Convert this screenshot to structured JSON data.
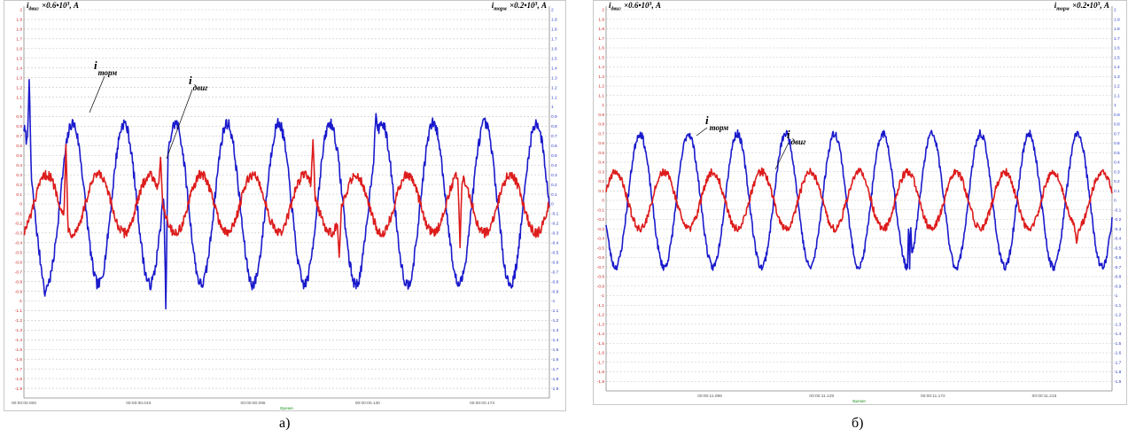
{
  "chart_data": [
    {
      "type": "line",
      "panel_caption": "а)",
      "left_axis_label": {
        "main": "i",
        "sub": "двиг",
        "scale": "×0.6•10",
        "exp": "3",
        "unit": ", A"
      },
      "right_axis_label": {
        "main": "i",
        "sub": "торм",
        "scale": "×0.2•10",
        "exp": "3",
        "unit": ", A"
      },
      "y_ticks": [
        "2",
        "1.9",
        "1.8",
        "1.7",
        "1.6",
        "1.5",
        "1.4",
        "1.3",
        "1.2",
        "1.1",
        "1",
        "0.9",
        "0.8",
        "0.7",
        "0.6",
        "0.5",
        "0.4",
        "0.3",
        "0.2",
        "0.1",
        "0",
        "-0.1",
        "-0.2",
        "-0.3",
        "-0.4",
        "-0.5",
        "-0.6",
        "-0.7",
        "-0.8",
        "-0.9",
        "-1",
        "-1.1",
        "-1.2",
        "-1.3",
        "-1.4",
        "-1.5",
        "-1.6",
        "-1.7",
        "-1.8",
        "-1.9"
      ],
      "ylim": [
        -2,
        2
      ],
      "x_ticks": [
        "00:00:00.000",
        "00:00:00.043",
        "00:00:00.086",
        "00:00:00.130",
        "00:00:00.173"
      ],
      "xlabel": "Время",
      "grid": true,
      "series": [
        {
          "name": "торм",
          "color": "#1a1acc",
          "amplitude": 0.83,
          "cycles": 10.2,
          "phase_deg": 110,
          "noise": 0.06,
          "spikes": [
            [
              0.01,
              1.28
            ],
            [
              0.04,
              -0.95
            ],
            [
              0.27,
              -1.08
            ],
            [
              0.67,
              0.93
            ]
          ]
        },
        {
          "name": "двиг",
          "color": "#dd1c1c",
          "amplitude": 0.3,
          "cycles": 10.2,
          "phase_deg": -70,
          "noise": 0.05,
          "spikes": [
            [
              0.08,
              0.61
            ],
            [
              0.26,
              0.48
            ],
            [
              0.55,
              0.66
            ],
            [
              0.6,
              -0.55
            ],
            [
              0.83,
              -0.45
            ]
          ]
        }
      ],
      "annotations": [
        {
          "main": "i",
          "sub": "торм"
        },
        {
          "main": "i",
          "sub": "двиг"
        }
      ]
    },
    {
      "type": "line",
      "panel_caption": "б)",
      "left_axis_label": {
        "main": "i",
        "sub": "двиг",
        "scale": "×0.6•10",
        "exp": "3",
        "unit": ", A"
      },
      "right_axis_label": {
        "main": "i",
        "sub": "торм",
        "scale": "×0.2•10",
        "exp": "3",
        "unit": ", A"
      },
      "y_ticks": [
        "2",
        "1.9",
        "1.8",
        "1.7",
        "1.6",
        "1.5",
        "1.4",
        "1.3",
        "1.2",
        "1.1",
        "1",
        "0.9",
        "0.8",
        "0.7",
        "0.6",
        "0.5",
        "0.4",
        "0.3",
        "0.2",
        "0.1",
        "0",
        "-0.1",
        "-0.2",
        "-0.3",
        "-0.4",
        "-0.5",
        "-0.6",
        "-0.7",
        "-0.8",
        "-0.9",
        "-1",
        "-1.1",
        "-1.2",
        "-1.3",
        "-1.4",
        "-1.5",
        "-1.6",
        "-1.7",
        "-1.8",
        "-1.9"
      ],
      "ylim": [
        -2,
        2
      ],
      "x_ticks": [
        "00:00:11.086",
        "00:00:11.129",
        "00:00:11.172",
        "00:00:11.215"
      ],
      "xlabel": "Время",
      "grid": true,
      "series": [
        {
          "name": "торм",
          "color": "#1a1acc",
          "amplitude": 0.7,
          "cycles": 10.4,
          "phase_deg": 200,
          "noise": 0.04,
          "spikes": [
            [
              0.6,
              0.9
            ],
            [
              0.6,
              -0.72
            ]
          ]
        },
        {
          "name": "двиг",
          "color": "#dd1c1c",
          "amplitude": 0.3,
          "cycles": 10.4,
          "phase_deg": 20,
          "noise": 0.04,
          "spikes": [
            [
              0.93,
              -0.45
            ]
          ]
        }
      ],
      "annotations": [
        {
          "main": "i",
          "sub": "торм"
        },
        {
          "main": "i",
          "sub": "двиг"
        }
      ]
    }
  ]
}
